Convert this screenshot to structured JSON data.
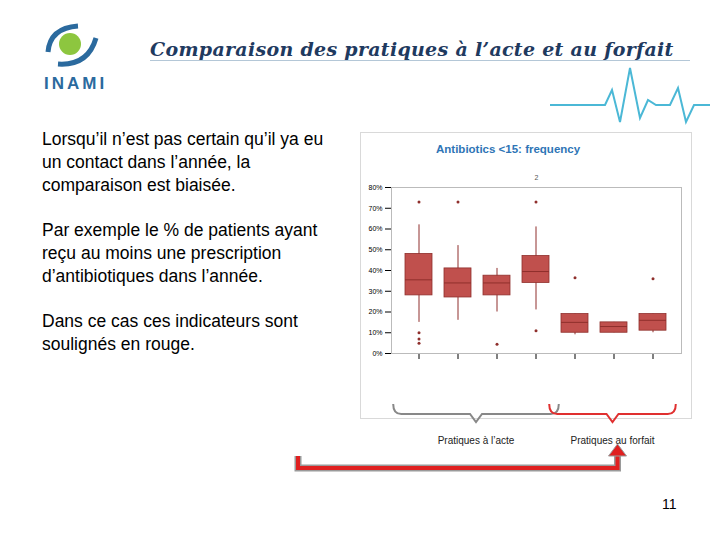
{
  "logo_text": "INAMI",
  "title": "Comparaison des pratiques à l’acte et au forfait",
  "paragraphs": [
    "Lorsqu’il n’est pas certain qu’il ya eu un contact dans l’année, la comparaison est biaisée.",
    "Par exemple le % de patients ayant reçu au moins une prescription d’antibiotiques dans l’année.",
    "Dans ce cas ces indicateurs sont soulignés en rouge."
  ],
  "page_number": "11",
  "chart_data": {
    "type": "boxplot",
    "title": "Antibiotics <15: frequency",
    "annotation": "2",
    "categories": [
      null,
      null,
      null,
      null,
      null,
      null,
      null
    ],
    "boxes": [
      {
        "min": 15,
        "q1": 28,
        "median": 35.5,
        "q3": 48,
        "max": 62,
        "outliers": [
          73,
          10,
          7,
          5
        ]
      },
      {
        "min": 16,
        "q1": 27,
        "median": 34,
        "q3": 41,
        "max": 52,
        "outliers": [
          73
        ]
      },
      {
        "min": 20,
        "q1": 28,
        "median": 34,
        "q3": 37.5,
        "max": 41,
        "outliers": [
          4.5
        ]
      },
      {
        "min": 21,
        "q1": 34,
        "median": 39.5,
        "q3": 47,
        "max": 61,
        "outliers": [
          73,
          11
        ]
      },
      {
        "min": 9,
        "q1": 10,
        "median": 15,
        "q3": 19,
        "max": 19,
        "outliers": [
          36.5
        ]
      },
      {
        "min": 10,
        "q1": 10,
        "median": 13,
        "q3": 15,
        "max": 15,
        "outliers": []
      },
      {
        "min": 10,
        "q1": 11,
        "median": 16,
        "q3": 19,
        "max": 19,
        "outliers": [
          36
        ]
      }
    ],
    "groups": [
      {
        "label": "Pratiques à l’acte",
        "from": 0,
        "to": 3
      },
      {
        "label": "Pratiques au forfait",
        "from": 4,
        "to": 6
      }
    ],
    "color": "#c0504d",
    "ylim": [
      0,
      80
    ],
    "yticks": [
      {
        "value": 0,
        "label": "0%"
      },
      {
        "value": 10,
        "label": "10%"
      },
      {
        "value": 20,
        "label": "20%"
      },
      {
        "value": 30,
        "label": "30%"
      },
      {
        "value": 40,
        "label": "40%"
      },
      {
        "value": 50,
        "label": "50%"
      },
      {
        "value": 60,
        "label": "60%"
      },
      {
        "value": 70,
        "label": "70%"
      },
      {
        "value": 80,
        "label": "80%"
      }
    ],
    "grid": false
  }
}
